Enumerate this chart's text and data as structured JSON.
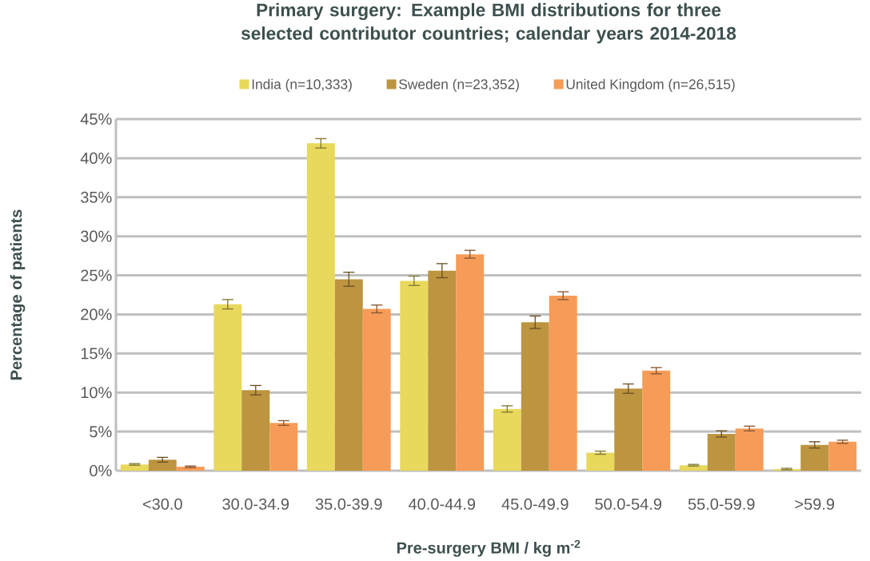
{
  "chart_data": {
    "type": "bar",
    "title": "Primary surgery: Example BMI distributions for three selected contributor countries; calendar years 2014-2018",
    "xlabel": "Pre-surgery BMI / kg m$^{-2}$",
    "ylabel": "Percentage of patients",
    "categories": [
      "<30.0",
      "30.0-34.9",
      "35.0-39.9",
      "40.0-44.9",
      "45.0-49.9",
      "50.0-54.9",
      "55.0-59.9",
      ">59.9"
    ],
    "series": [
      {
        "name": "India (n=10,333)",
        "color": "#e8d85c",
        "values": [
          0.8,
          21.3,
          41.9,
          24.3,
          7.9,
          2.3,
          0.7,
          0.2
        ],
        "errors": [
          0.1,
          0.6,
          0.6,
          0.6,
          0.4,
          0.2,
          0.1,
          0.1
        ]
      },
      {
        "name": "Sweden (n=23,352)",
        "color": "#bd943f",
        "values": [
          1.4,
          10.3,
          24.5,
          25.6,
          19.0,
          10.5,
          4.7,
          3.3
        ],
        "errors": [
          0.3,
          0.6,
          0.9,
          0.9,
          0.8,
          0.6,
          0.4,
          0.4
        ]
      },
      {
        "name": "United Kingdom (n=26,515)",
        "color": "#f69c58",
        "values": [
          0.5,
          6.1,
          20.7,
          27.7,
          22.4,
          12.8,
          5.4,
          3.7
        ],
        "errors": [
          0.1,
          0.3,
          0.5,
          0.5,
          0.5,
          0.4,
          0.3,
          0.2
        ]
      }
    ],
    "ylim": [
      0,
      45
    ],
    "yticks": [
      {
        "value": 0,
        "label": "0%"
      },
      {
        "value": 5,
        "label": "5%"
      },
      {
        "value": 10,
        "label": "10%"
      },
      {
        "value": 15,
        "label": "15%"
      },
      {
        "value": 20,
        "label": "20%"
      },
      {
        "value": 25,
        "label": "25%"
      },
      {
        "value": 30,
        "label": "30%"
      },
      {
        "value": 35,
        "label": "35%"
      },
      {
        "value": 40,
        "label": "40%"
      },
      {
        "value": 45,
        "label": "45%"
      }
    ],
    "grid": "y",
    "legend": "top"
  }
}
